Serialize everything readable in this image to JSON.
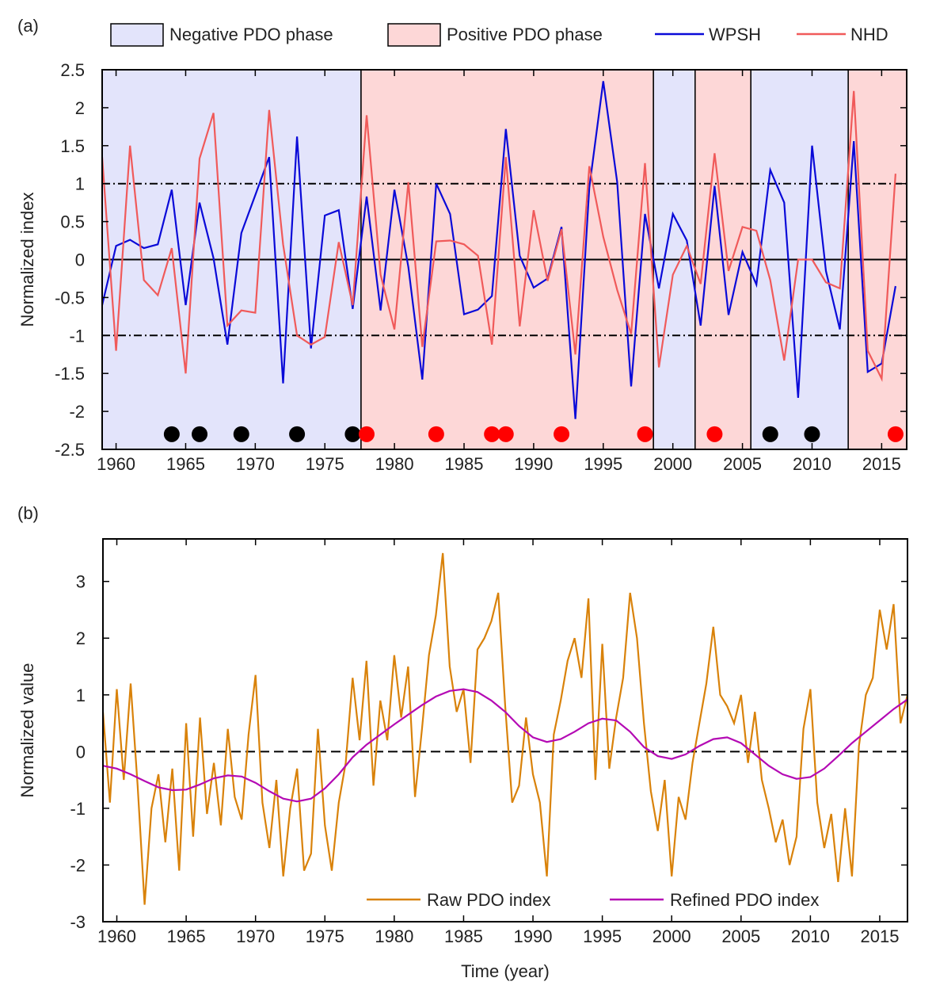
{
  "chart_data": [
    {
      "type": "line",
      "label": "(a)",
      "ylabel": "Normalized index",
      "x": [
        1959,
        1960,
        1961,
        1962,
        1963,
        1964,
        1965,
        1966,
        1967,
        1968,
        1969,
        1970,
        1971,
        1972,
        1973,
        1974,
        1975,
        1976,
        1977,
        1978,
        1979,
        1980,
        1981,
        1982,
        1983,
        1984,
        1985,
        1986,
        1987,
        1988,
        1989,
        1990,
        1991,
        1992,
        1993,
        1994,
        1995,
        1996,
        1997,
        1998,
        1999,
        2000,
        2001,
        2002,
        2003,
        2004,
        2005,
        2006,
        2007,
        2008,
        2009,
        2010,
        2011,
        2012,
        2013,
        2014,
        2015,
        2016
      ],
      "series": [
        {
          "name": "WPSH",
          "color": "#0a0ad8",
          "values": [
            -0.6,
            0.18,
            0.26,
            0.15,
            0.2,
            0.92,
            -0.6,
            0.75,
            0.02,
            -1.12,
            0.35,
            0.85,
            1.35,
            -1.63,
            1.62,
            -1.17,
            0.58,
            0.65,
            -0.65,
            0.83,
            -0.67,
            0.92,
            -0.1,
            -1.58,
            1.0,
            0.6,
            -0.72,
            -0.66,
            -0.48,
            1.72,
            0.05,
            -0.37,
            -0.25,
            0.43,
            -2.1,
            0.95,
            2.35,
            1.02,
            -1.67,
            0.6,
            -0.38,
            0.6,
            0.25,
            -0.87,
            0.97,
            -0.73,
            0.1,
            -0.33,
            1.18,
            0.75,
            -1.82,
            1.5,
            -0.15,
            -0.92,
            1.56,
            -1.48,
            -1.37,
            -0.35
          ]
        },
        {
          "name": "NHD",
          "color": "#f05a5a",
          "values": [
            1.35,
            -1.2,
            1.5,
            -0.27,
            -0.47,
            0.15,
            -1.5,
            1.33,
            1.93,
            -0.87,
            -0.67,
            -0.7,
            1.97,
            0.2,
            -1.0,
            -1.12,
            -1.02,
            0.23,
            -0.6,
            1.9,
            -0.2,
            -0.92,
            1.02,
            -1.15,
            0.24,
            0.25,
            0.2,
            0.05,
            -1.12,
            1.35,
            -0.88,
            0.65,
            -0.28,
            0.4,
            -1.25,
            1.23,
            0.3,
            -0.4,
            -0.98,
            1.27,
            -1.42,
            -0.2,
            0.18,
            -0.32,
            1.4,
            -0.15,
            0.43,
            0.38,
            -0.27,
            -1.33,
            0.0,
            0.0,
            -0.3,
            -0.38,
            2.22,
            -1.2,
            -1.57,
            1.13
          ]
        }
      ],
      "phases": [
        {
          "name": "Negative PDO phase",
          "color": "#e3e4fb",
          "spans": [
            [
              1959,
              1977.6
            ],
            [
              1998.6,
              2001.6
            ],
            [
              2005.6,
              2012.6
            ]
          ]
        },
        {
          "name": "Positive PDO phase",
          "color": "#fdd7d7",
          "spans": [
            [
              1977.6,
              1998.6
            ],
            [
              2001.6,
              2005.6
            ],
            [
              2012.6,
              2016.8
            ]
          ]
        }
      ],
      "events": [
        {
          "color": "#000000",
          "x": [
            1964,
            1966,
            1969,
            1973,
            1977,
            2007,
            2010
          ]
        },
        {
          "color": "#ff0000",
          "x": [
            1978,
            1983,
            1987,
            1988,
            1992,
            1998,
            2003,
            2016
          ]
        }
      ],
      "hlines": [
        {
          "value": 1,
          "style": "dashdot"
        },
        {
          "value": 0,
          "style": "solid"
        },
        {
          "value": -1,
          "style": "dashdot"
        }
      ],
      "xlim": [
        1959,
        2016.8
      ],
      "xticks": [
        1960,
        1965,
        1970,
        1975,
        1980,
        1985,
        1990,
        1995,
        2000,
        2005,
        2010,
        2015
      ],
      "ylim": [
        -2.5,
        2.5
      ],
      "yticks": [
        2.5,
        2,
        1.5,
        1,
        0.5,
        0,
        -0.5,
        -1,
        -1.5,
        -2,
        -2.5
      ]
    },
    {
      "type": "line",
      "label": "(b)",
      "xlabel": "Time (year)",
      "ylabel": "Normalized value",
      "series": [
        {
          "name": "Raw PDO index",
          "color": "#d9820a",
          "x": [
            1959,
            1959.5,
            1960,
            1960.5,
            1961,
            1961.5,
            1962,
            1962.5,
            1963,
            1963.5,
            1964,
            1964.5,
            1965,
            1965.5,
            1966,
            1966.5,
            1967,
            1967.5,
            1968,
            1968.5,
            1969,
            1969.5,
            1970,
            1970.5,
            1971,
            1971.5,
            1972,
            1972.5,
            1973,
            1973.5,
            1974,
            1974.5,
            1975,
            1975.5,
            1976,
            1976.5,
            1977,
            1977.5,
            1978,
            1978.5,
            1979,
            1979.5,
            1980,
            1980.5,
            1981,
            1981.5,
            1982,
            1982.5,
            1983,
            1983.5,
            1984,
            1984.5,
            1985,
            1985.5,
            1986,
            1986.5,
            1987,
            1987.5,
            1988,
            1988.5,
            1989,
            1989.5,
            1990,
            1990.5,
            1991,
            1991.5,
            1992,
            1992.5,
            1993,
            1993.5,
            1994,
            1994.5,
            1995,
            1995.5,
            1996,
            1996.5,
            1997,
            1997.5,
            1998,
            1998.5,
            1999,
            1999.5,
            2000,
            2000.5,
            2001,
            2001.5,
            2002,
            2002.5,
            2003,
            2003.5,
            2004,
            2004.5,
            2005,
            2005.5,
            2006,
            2006.5,
            2007,
            2007.5,
            2008,
            2008.5,
            2009,
            2009.5,
            2010,
            2010.5,
            2011,
            2011.5,
            2012,
            2012.5,
            2013,
            2013.5,
            2014,
            2014.5,
            2015,
            2015.5,
            2016,
            2016.5,
            2017
          ],
          "values": [
            0.7,
            -0.9,
            1.1,
            -0.5,
            1.2,
            -0.6,
            -2.7,
            -1.0,
            -0.4,
            -1.6,
            -0.3,
            -2.1,
            0.5,
            -1.5,
            0.6,
            -1.1,
            -0.2,
            -1.3,
            0.4,
            -0.8,
            -1.2,
            0.3,
            1.35,
            -0.9,
            -1.7,
            -0.5,
            -2.2,
            -1.0,
            -0.3,
            -2.1,
            -1.8,
            0.4,
            -1.3,
            -2.1,
            -0.9,
            -0.2,
            1.3,
            0.2,
            1.6,
            -0.6,
            0.9,
            0.2,
            1.7,
            0.6,
            1.5,
            -0.8,
            0.4,
            1.7,
            2.4,
            3.5,
            1.5,
            0.7,
            1.1,
            -0.2,
            1.8,
            2.0,
            2.3,
            2.8,
            0.8,
            -0.9,
            -0.6,
            0.6,
            -0.4,
            -0.9,
            -2.2,
            0.3,
            0.9,
            1.6,
            2.0,
            1.3,
            2.7,
            -0.5,
            1.9,
            -0.3,
            0.6,
            1.3,
            2.8,
            2.0,
            0.5,
            -0.7,
            -1.4,
            -0.5,
            -2.2,
            -0.8,
            -1.2,
            -0.2,
            0.5,
            1.2,
            2.2,
            1.0,
            0.8,
            0.5,
            1.0,
            -0.2,
            0.7,
            -0.5,
            -1.0,
            -1.6,
            -1.2,
            -2.0,
            -1.5,
            0.4,
            1.1,
            -0.9,
            -1.7,
            -1.1,
            -2.3,
            -1.0,
            -2.2,
            0.1,
            1.0,
            1.3,
            2.5,
            1.8,
            2.6,
            0.5,
            1.0
          ]
        },
        {
          "name": "Refined PDO index",
          "color": "#b40ab4",
          "x": [
            1959,
            1960,
            1961,
            1962,
            1963,
            1964,
            1965,
            1966,
            1967,
            1968,
            1969,
            1970,
            1971,
            1972,
            1973,
            1974,
            1975,
            1976,
            1977,
            1978,
            1979,
            1980,
            1981,
            1982,
            1983,
            1984,
            1985,
            1986,
            1987,
            1988,
            1989,
            1990,
            1991,
            1992,
            1993,
            1994,
            1995,
            1996,
            1997,
            1998,
            1999,
            2000,
            2001,
            2002,
            2003,
            2004,
            2005,
            2006,
            2007,
            2008,
            2009,
            2010,
            2011,
            2012,
            2013,
            2014,
            2015,
            2016,
            2017
          ],
          "values": [
            -0.25,
            -0.3,
            -0.4,
            -0.52,
            -0.63,
            -0.68,
            -0.67,
            -0.58,
            -0.47,
            -0.42,
            -0.44,
            -0.55,
            -0.7,
            -0.83,
            -0.88,
            -0.83,
            -0.65,
            -0.4,
            -0.1,
            0.12,
            0.3,
            0.48,
            0.65,
            0.82,
            0.97,
            1.07,
            1.1,
            1.05,
            0.9,
            0.7,
            0.45,
            0.25,
            0.17,
            0.22,
            0.35,
            0.5,
            0.58,
            0.55,
            0.35,
            0.08,
            -0.08,
            -0.13,
            -0.05,
            0.1,
            0.22,
            0.25,
            0.15,
            -0.05,
            -0.25,
            -0.4,
            -0.48,
            -0.45,
            -0.3,
            -0.08,
            0.15,
            0.35,
            0.55,
            0.75,
            0.92
          ]
        }
      ],
      "hlines": [
        {
          "value": 0,
          "style": "dashed"
        }
      ],
      "xlim": [
        1959,
        2017
      ],
      "xticks": [
        1960,
        1965,
        1970,
        1975,
        1980,
        1985,
        1990,
        1995,
        2000,
        2005,
        2010,
        2015
      ],
      "ylim": [
        -3,
        3.75
      ],
      "yticks": [
        3,
        2,
        1,
        0,
        -1,
        -2,
        -3
      ]
    }
  ]
}
